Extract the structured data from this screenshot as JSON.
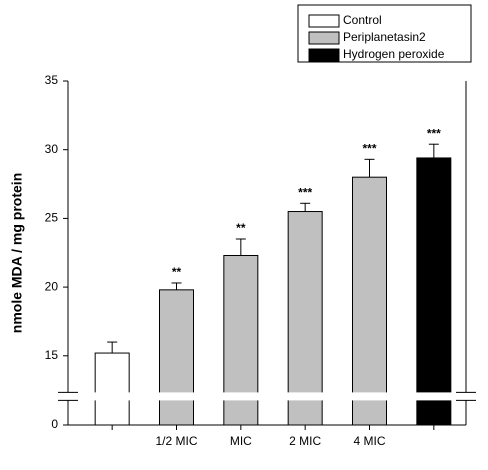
{
  "chart_data": {
    "type": "bar",
    "y_label": "nmole MDA / mg protein",
    "categories": [
      null,
      "1/2 MIC",
      "MIC",
      "2 MIC",
      "4 MIC",
      null
    ],
    "series": [
      {
        "name": "Control",
        "color": "#ffffff",
        "values": [
          15.2,
          null,
          null,
          null,
          null,
          null
        ],
        "errors": [
          0.8,
          null,
          null,
          null,
          null,
          null
        ]
      },
      {
        "name": "Periplanetasin2",
        "color": "#c0c0c0",
        "values": [
          null,
          19.8,
          22.3,
          25.5,
          28.0,
          null
        ],
        "errors": [
          null,
          0.5,
          1.2,
          0.6,
          1.3,
          null
        ]
      },
      {
        "name": "Hydrogen peroxide",
        "color": "#000000",
        "values": [
          null,
          null,
          null,
          null,
          null,
          29.4
        ],
        "errors": [
          null,
          null,
          null,
          null,
          null,
          1.0
        ]
      }
    ],
    "annotations": [
      null,
      "**",
      "**",
      "***",
      "***",
      "***"
    ],
    "ylim": [
      0,
      35
    ],
    "yticks": [
      0,
      15,
      20,
      25,
      30,
      35
    ],
    "y_break": [
      2,
      13
    ],
    "legend": "top-right"
  }
}
